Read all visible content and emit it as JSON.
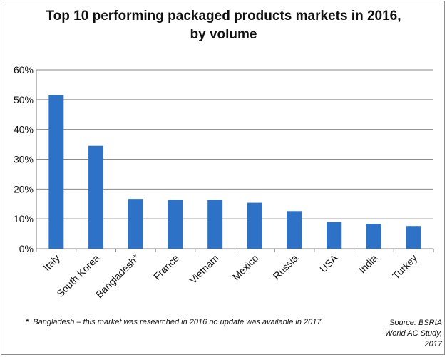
{
  "title_line1": "Top 10 performing packaged products markets in 2016,",
  "title_line2": "by volume",
  "footnote_marker": "*",
  "footnote_text": "Bangladesh – this market was researched in 2016 no update was available in 2017",
  "source_line1": "Source: BSRIA",
  "source_line2": "World AC Study,",
  "source_line3": "2017",
  "chart_data": {
    "type": "bar",
    "title": "Top 10 performing packaged products markets in 2016, by volume",
    "categories": [
      "Italy",
      "South Korea",
      "Bangladesh*",
      "France",
      "Vietnam",
      "Mexico",
      "Russia",
      "USA",
      "India",
      "Turkey"
    ],
    "values": [
      51.5,
      34.5,
      16.7,
      16.4,
      16.4,
      15.4,
      12.6,
      8.9,
      8.3,
      7.6
    ],
    "ylim": [
      0,
      60
    ],
    "yticks": [
      0,
      10,
      20,
      30,
      40,
      50,
      60
    ],
    "ytick_labels": [
      "0%",
      "10%",
      "20%",
      "30%",
      "40%",
      "50%",
      "60%"
    ],
    "xlabel": "",
    "ylabel": "",
    "grid": true,
    "bar_color": "#2e72c8"
  }
}
